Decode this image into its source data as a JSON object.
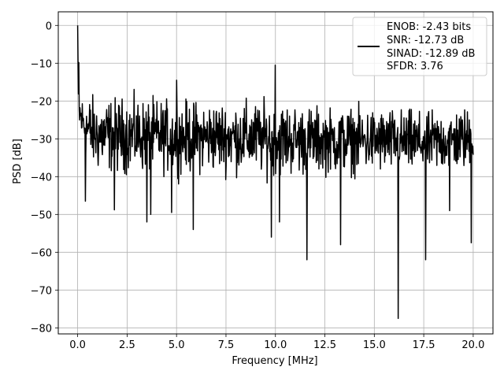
{
  "chart_data": {
    "type": "line",
    "title": "",
    "xlabel": "Frequency [MHz]",
    "ylabel": "PSD [dB]",
    "xlim": [
      -0.98,
      21.0
    ],
    "ylim": [
      -81.6,
      3.6
    ],
    "xticks": [
      0.0,
      2.5,
      5.0,
      7.5,
      10.0,
      12.5,
      15.0,
      17.5,
      20.0
    ],
    "xtick_labels": [
      "0.0",
      "2.5",
      "5.0",
      "7.5",
      "10.0",
      "12.5",
      "15.0",
      "17.5",
      "20.0"
    ],
    "yticks": [
      0,
      -10,
      -20,
      -30,
      -40,
      -50,
      -60,
      -70,
      -80
    ],
    "ytick_labels": [
      "0",
      "−10",
      "−20",
      "−30",
      "−40",
      "−50",
      "−60",
      "−70",
      "−80"
    ],
    "grid": true,
    "legend_position": "top-right",
    "legend_lines": [
      "ENOB: -2.43 bits",
      "SNR: -12.73 dB",
      "SINAD: -12.89 dB",
      "SFDR: 3.76"
    ],
    "series": [
      {
        "color": "#000000",
        "x_range": [
          0.0,
          20.0
        ],
        "n_points": 1024,
        "envelope_upper": {
          "x": [
            0.0,
            0.05,
            0.1,
            0.2,
            0.5,
            1.0,
            2.5,
            5.0,
            7.5,
            10.0,
            12.5,
            15.0,
            17.5,
            20.0
          ],
          "y": [
            0.0,
            -12,
            -15,
            -16,
            -15,
            -16,
            -16,
            -17,
            -17,
            -17,
            -19,
            -19,
            -20,
            -19
          ]
        },
        "envelope_lower": {
          "x": [
            0.0,
            0.5,
            1.0,
            2.5,
            5.0,
            7.5,
            10.0,
            12.5,
            15.0,
            17.5,
            20.0
          ],
          "y": [
            -30,
            -40,
            -42,
            -42,
            -42,
            -42,
            -43,
            -42,
            -42,
            -42,
            -41
          ]
        },
        "spurs": [
          {
            "x": 0.0,
            "y": 0.0
          },
          {
            "x": 0.05,
            "y": -9.8
          },
          {
            "x": 10.0,
            "y": -10.5
          },
          {
            "x": 5.0,
            "y": -14.5
          },
          {
            "x": 0.4,
            "y": -46.5
          },
          {
            "x": 1.85,
            "y": -48.8
          },
          {
            "x": 3.5,
            "y": -52.0
          },
          {
            "x": 3.7,
            "y": -50.0
          },
          {
            "x": 4.75,
            "y": -49.5
          },
          {
            "x": 5.85,
            "y": -54.0
          },
          {
            "x": 9.8,
            "y": -56.0
          },
          {
            "x": 10.2,
            "y": -52.0
          },
          {
            "x": 11.6,
            "y": -62.0
          },
          {
            "x": 13.3,
            "y": -58.0
          },
          {
            "x": 16.2,
            "y": -77.5
          },
          {
            "x": 17.6,
            "y": -62.0
          },
          {
            "x": 18.8,
            "y": -49.0
          },
          {
            "x": 19.9,
            "y": -57.5
          }
        ]
      }
    ]
  }
}
